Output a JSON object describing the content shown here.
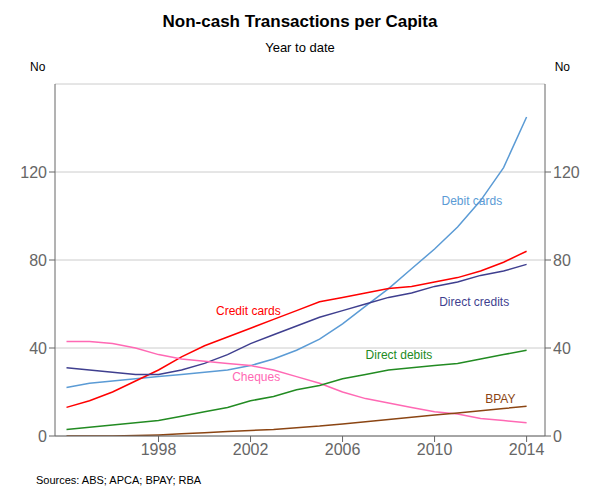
{
  "chart_data": {
    "type": "line",
    "title": "Non-cash Transactions per Capita",
    "subtitle": "Year to date",
    "ylabel": "No",
    "y2label": "No",
    "source": "Sources:   ABS; APCA; BPAY; RBA",
    "x": [
      1994,
      1995,
      1996,
      1997,
      1998,
      1999,
      2000,
      2001,
      2002,
      2003,
      2004,
      2005,
      2006,
      2007,
      2008,
      2009,
      2010,
      2011,
      2012,
      2013,
      2014
    ],
    "xlim": [
      1993.5,
      2014.8
    ],
    "xticks": [
      1998,
      2002,
      2006,
      2010,
      2014
    ],
    "ylim": [
      0,
      160
    ],
    "yticks": [
      0,
      40,
      80,
      120
    ],
    "y2lim": [
      0,
      160
    ],
    "y2ticks": [
      0,
      40,
      80,
      120
    ],
    "grid": true,
    "series": [
      {
        "name": "Debit cards",
        "color": "#5B9BD5",
        "values": [
          22,
          24,
          25,
          26,
          27,
          28,
          29,
          30,
          32,
          35,
          39,
          44,
          51,
          59,
          67,
          76,
          85,
          95,
          107,
          122,
          145
        ]
      },
      {
        "name": "Credit cards",
        "color": "#FF0000",
        "values": [
          13,
          16,
          20,
          25,
          30,
          36,
          41,
          45,
          49,
          53,
          57,
          61,
          63,
          65,
          67,
          68,
          70,
          72,
          75,
          79,
          84
        ]
      },
      {
        "name": "Direct credits",
        "color": "#3F3F8F",
        "values": [
          31,
          30,
          29,
          28,
          28,
          30,
          33,
          37,
          42,
          46,
          50,
          54,
          57,
          60,
          63,
          65,
          68,
          70,
          73,
          75,
          78
        ]
      },
      {
        "name": "Cheques",
        "color": "#FF69B4",
        "values": [
          43,
          43,
          42,
          40,
          37,
          35,
          34,
          33,
          32,
          30,
          27,
          24,
          20,
          17,
          15,
          13,
          11,
          10,
          8,
          7,
          6
        ]
      },
      {
        "name": "Direct debits",
        "color": "#228B22",
        "values": [
          3,
          4,
          5,
          6,
          7,
          9,
          11,
          13,
          16,
          18,
          21,
          23,
          26,
          28,
          30,
          31,
          32,
          33,
          35,
          37,
          39
        ]
      },
      {
        "name": "BPAY",
        "color": "#8B4513",
        "values": [
          0,
          0,
          0,
          0.2,
          0.5,
          1.0,
          1.5,
          2.0,
          2.5,
          3.0,
          3.8,
          4.5,
          5.5,
          6.5,
          7.5,
          8.5,
          9.5,
          10.5,
          11.5,
          12.5,
          13.5
        ]
      }
    ],
    "annotations": [
      {
        "text": "Debit cards",
        "x": 2010.3,
        "y": 107,
        "color": "#5B9BD5"
      },
      {
        "text": "Credit cards",
        "x": 2000.5,
        "y": 57,
        "color": "#FF0000"
      },
      {
        "text": "Direct credits",
        "x": 2010.2,
        "y": 61,
        "color": "#3F3F8F"
      },
      {
        "text": "Cheques",
        "x": 2001.2,
        "y": 27,
        "color": "#FF69B4"
      },
      {
        "text": "Direct debits",
        "x": 2007.0,
        "y": 37,
        "color": "#228B22"
      },
      {
        "text": "BPAY",
        "x": 2012.2,
        "y": 17,
        "color": "#8B4513"
      }
    ]
  }
}
